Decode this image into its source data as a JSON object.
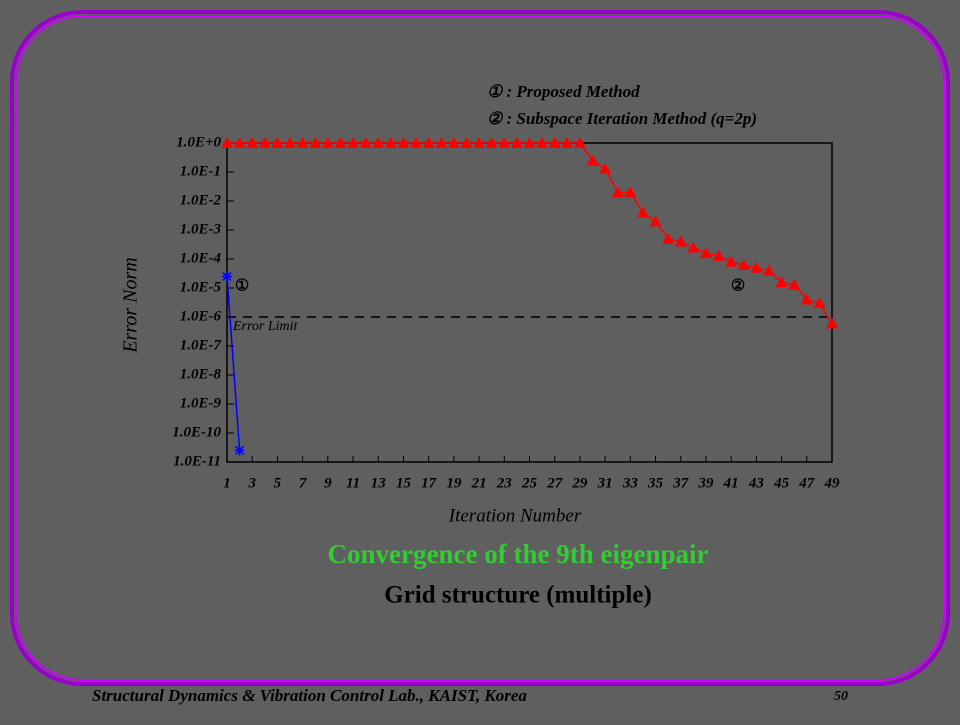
{
  "chart_data": {
    "type": "line",
    "title": "Convergence of the 9th eigenpair",
    "subtitle": "Grid structure (multiple)",
    "x_label": "Iteration Number",
    "y_label": "Error Norm",
    "x": [
      1,
      2,
      3,
      4,
      5,
      6,
      7,
      8,
      9,
      10,
      11,
      12,
      13,
      14,
      15,
      16,
      17,
      18,
      19,
      20,
      21,
      22,
      23,
      24,
      25,
      26,
      27,
      28,
      29,
      30,
      31,
      32,
      33,
      34,
      35,
      36,
      37,
      38,
      39,
      40,
      41,
      42,
      43,
      44,
      45,
      46,
      47,
      48,
      49
    ],
    "series": [
      {
        "name": "① : Proposed Method",
        "label": "①",
        "color": "#0000ff",
        "marker": "star",
        "values": [
          2.5e-05,
          2.5e-11,
          null,
          null,
          null,
          null,
          null,
          null,
          null,
          null,
          null,
          null,
          null,
          null,
          null,
          null,
          null,
          null,
          null,
          null,
          null,
          null,
          null,
          null,
          null,
          null,
          null,
          null,
          null,
          null,
          null,
          null,
          null,
          null,
          null,
          null,
          null,
          null,
          null,
          null,
          null,
          null,
          null,
          null,
          null,
          null,
          null,
          null,
          null
        ]
      },
      {
        "name": "② : Subspace Iteration Method (q=2p)",
        "label": "②",
        "color": "#ff0000",
        "marker": "triangle",
        "values": [
          1,
          1,
          1,
          1,
          1,
          1,
          1,
          1,
          1,
          1,
          1,
          1,
          1,
          1,
          1,
          1,
          1,
          1,
          1,
          1,
          1,
          1,
          1,
          1,
          1,
          1,
          1,
          1,
          1,
          0.25,
          0.13,
          0.02,
          0.02,
          0.004,
          0.002,
          0.0005,
          0.0004,
          0.00025,
          0.00016,
          0.00013,
          8e-05,
          6.3e-05,
          5e-05,
          4e-05,
          1.6e-05,
          1.3e-05,
          4e-06,
          3e-06,
          6e-07
        ]
      }
    ],
    "error_limit": {
      "label": "Error Limit",
      "value": 1e-06
    },
    "log_y": true,
    "xlim": [
      1,
      49
    ],
    "ylim": [
      1e-11,
      1
    ],
    "xticks": [
      1,
      3,
      5,
      7,
      9,
      11,
      13,
      15,
      17,
      19,
      21,
      23,
      25,
      27,
      29,
      31,
      33,
      35,
      37,
      39,
      41,
      43,
      45,
      47,
      49
    ],
    "yticks": [
      {
        "value": 1,
        "label": "1.0E+0"
      },
      {
        "value": 0.1,
        "label": "1.0E-1"
      },
      {
        "value": 0.01,
        "label": "1.0E-2"
      },
      {
        "value": 0.001,
        "label": "1.0E-3"
      },
      {
        "value": 0.0001,
        "label": "1.0E-4"
      },
      {
        "value": 1e-05,
        "label": "1.0E-5"
      },
      {
        "value": 1e-06,
        "label": "1.0E-6"
      },
      {
        "value": 1e-07,
        "label": "1.0E-7"
      },
      {
        "value": 1e-08,
        "label": "1.0E-8"
      },
      {
        "value": 1e-09,
        "label": "1.0E-9"
      },
      {
        "value": 1e-10,
        "label": "1.0E-10"
      },
      {
        "value": 1e-11,
        "label": "1.0E-11"
      }
    ],
    "title_color": "#33cc33"
  },
  "footer": {
    "text": "Structural Dynamics & Vibration Control Lab., KAIST, Korea",
    "page": "50"
  }
}
